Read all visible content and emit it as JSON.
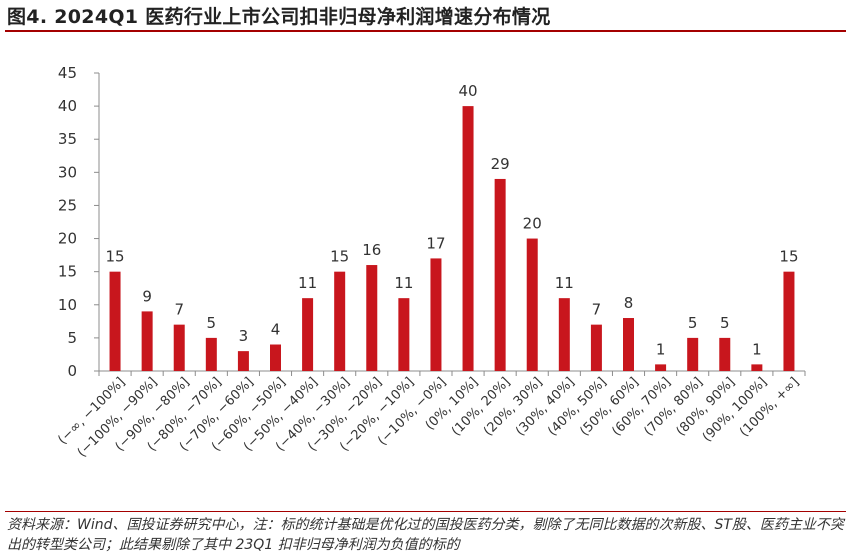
{
  "title": "图4. 2024Q1 医药行业上市公司扣非归母净利润增速分布情况",
  "source": "资料来源：Wind、国投证券研究中心，注：标的统计基础是优化过的国投医药分类，剔除了无同比数据的次新股、ST股、医药主业不突出的转型类公司；此结果剔除了其中 23Q1 扣非归母净利润为负值的标的",
  "chart_data": {
    "type": "bar",
    "categories": [
      "(−∞, −100%]",
      "(−100%, −90%]",
      "(−90%, −80%]",
      "(−80%, −70%]",
      "(−70%, −60%]",
      "(−60%, −50%]",
      "(−50%, −40%]",
      "(−40%, −30%]",
      "(−30%, −20%]",
      "(−20%, −10%]",
      "(−10%, −0%]",
      "(0%, 10%]",
      "(10%, 20%]",
      "(20%, 30%]",
      "(30%, 40%]",
      "(40%, 50%]",
      "(50%, 60%]",
      "(60%, 70%]",
      "(70%, 80%]",
      "(80%, 90%]",
      "(90%, 100%]",
      "(100%, +∞]"
    ],
    "values": [
      15,
      9,
      7,
      5,
      3,
      4,
      11,
      15,
      16,
      11,
      17,
      40,
      29,
      20,
      11,
      7,
      8,
      1,
      5,
      5,
      1,
      15
    ],
    "ylim": [
      0,
      45
    ],
    "yticks": [
      0,
      5,
      10,
      15,
      20,
      25,
      30,
      35,
      40,
      45
    ],
    "bar_color": "#c8161d",
    "data_labels": true,
    "grid": false,
    "xlabel": "",
    "ylabel": ""
  }
}
